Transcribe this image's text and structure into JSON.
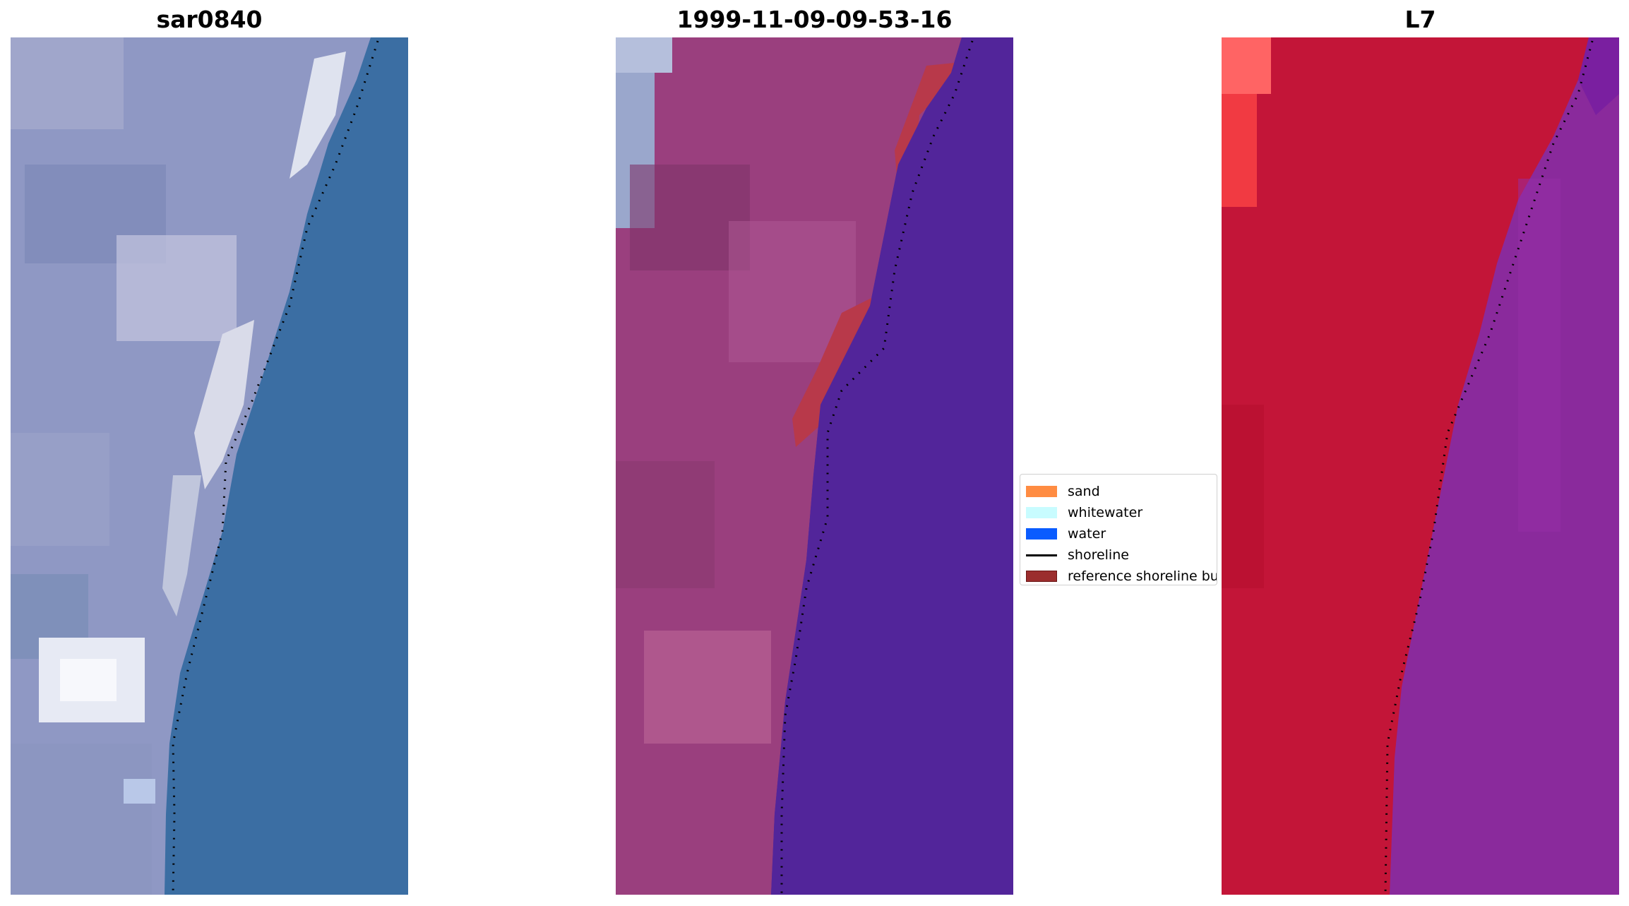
{
  "panels": [
    {
      "title": "sar0840"
    },
    {
      "title": "1999-11-09-09-53-16"
    },
    {
      "title": "L7"
    }
  ],
  "legend": {
    "items": [
      {
        "label": "sand",
        "color": "#ff8c42",
        "kind": "patch"
      },
      {
        "label": "whitewater",
        "color": "#c8fcff",
        "kind": "patch"
      },
      {
        "label": "water",
        "color": "#0a5cff",
        "kind": "patch"
      },
      {
        "label": "shoreline",
        "color": "#000000",
        "kind": "line"
      },
      {
        "label": "reference shoreline buffer",
        "color": "#9b2d2d",
        "kind": "patch"
      }
    ]
  },
  "colors": {
    "sea_rgb": "#3b6ea3",
    "land_rgb": "#8f98c4",
    "land_classified": "#9a3f7e",
    "water_classified": "#52259a",
    "buffer": "#b8394a",
    "land_falsecolor": "#c31538",
    "water_falsecolor": "#8a2a9c"
  }
}
